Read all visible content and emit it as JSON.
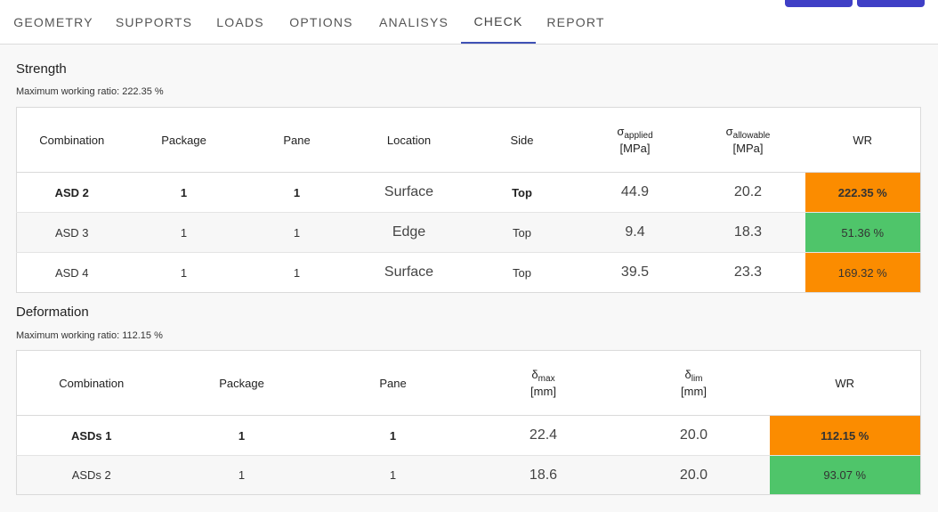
{
  "tabs": [
    {
      "label": "GEOMETRY",
      "active": false
    },
    {
      "label": "SUPPORTS",
      "active": false
    },
    {
      "label": "LOADS",
      "active": false
    },
    {
      "label": "OPTIONS",
      "active": false
    },
    {
      "label": "ANALISYS",
      "active": false
    },
    {
      "label": "CHECK",
      "active": true
    },
    {
      "label": "REPORT",
      "active": false
    }
  ],
  "strength": {
    "title": "Strength",
    "max_ratio": "Maximum working ratio: 222.35 %",
    "headers": {
      "combination": "Combination",
      "package": "Package",
      "pane": "Pane",
      "location": "Location",
      "side": "Side",
      "sigma_applied": "σ",
      "sigma_applied_sub": "applied",
      "sigma_applied_unit": "[MPa]",
      "sigma_allowable": "σ",
      "sigma_allowable_sub": "allowable",
      "sigma_allowable_unit": "[MPa]",
      "wr": "WR"
    },
    "rows": [
      {
        "combination": "ASD 2",
        "package": "1",
        "pane": "1",
        "location": "Surface",
        "side": "Top",
        "applied": "44.9",
        "allowable": "20.2",
        "wr": "222.35 %",
        "status": "orange",
        "bold": true
      },
      {
        "combination": "ASD 3",
        "package": "1",
        "pane": "1",
        "location": "Edge",
        "side": "Top",
        "applied": "9.4",
        "allowable": "18.3",
        "wr": "51.36 %",
        "status": "green",
        "bold": false
      },
      {
        "combination": "ASD 4",
        "package": "1",
        "pane": "1",
        "location": "Surface",
        "side": "Top",
        "applied": "39.5",
        "allowable": "23.3",
        "wr": "169.32 %",
        "status": "orange",
        "bold": false
      }
    ]
  },
  "deformation": {
    "title": "Deformation",
    "max_ratio": "Maximum working ratio: 112.15 %",
    "headers": {
      "combination": "Combination",
      "package": "Package",
      "pane": "Pane",
      "delta_max": "δ",
      "delta_max_sub": "max",
      "delta_max_unit": "[mm]",
      "delta_lim": "δ",
      "delta_lim_sub": "lim",
      "delta_lim_unit": "[mm]",
      "wr": "WR"
    },
    "rows": [
      {
        "combination": "ASDs 1",
        "package": "1",
        "pane": "1",
        "dmax": "22.4",
        "dlim": "20.0",
        "wr": "112.15 %",
        "status": "orange",
        "bold": true
      },
      {
        "combination": "ASDs 2",
        "package": "1",
        "pane": "1",
        "dmax": "18.6",
        "dlim": "20.0",
        "wr": "93.07 %",
        "status": "green",
        "bold": false
      }
    ]
  },
  "colors": {
    "accent": "#3f51b5",
    "orange": "#fb8c00",
    "green": "#4fc56a"
  }
}
